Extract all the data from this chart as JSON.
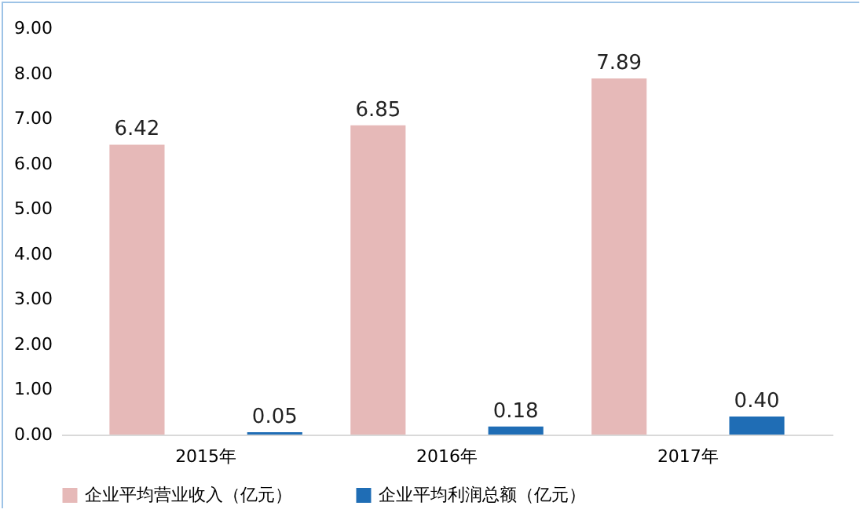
{
  "chart_data": {
    "type": "bar",
    "categories": [
      "2015年",
      "2016年",
      "2017年"
    ],
    "series": [
      {
        "name": "企业平均营业收入（亿元）",
        "color": "#e6b9b8",
        "values": [
          6.42,
          6.85,
          7.89
        ],
        "value_labels": [
          "6.42",
          "6.85",
          "7.89"
        ]
      },
      {
        "name": "企业平均利润总额（亿元）",
        "color": "#1f6db5",
        "values": [
          0.05,
          0.18,
          0.4
        ],
        "value_labels": [
          "0.05",
          "0.18",
          "0.40"
        ]
      }
    ],
    "ylim": [
      0,
      9
    ],
    "yticks": [
      {
        "value": 0,
        "label": "0.00"
      },
      {
        "value": 1,
        "label": "1.00"
      },
      {
        "value": 2,
        "label": "2.00"
      },
      {
        "value": 3,
        "label": "3.00"
      },
      {
        "value": 4,
        "label": "4.00"
      },
      {
        "value": 5,
        "label": "5.00"
      },
      {
        "value": 6,
        "label": "6.00"
      },
      {
        "value": 7,
        "label": "7.00"
      },
      {
        "value": 8,
        "label": "8.00"
      },
      {
        "value": 9,
        "label": "9.00"
      }
    ],
    "grid": false,
    "legend": "bottom"
  }
}
